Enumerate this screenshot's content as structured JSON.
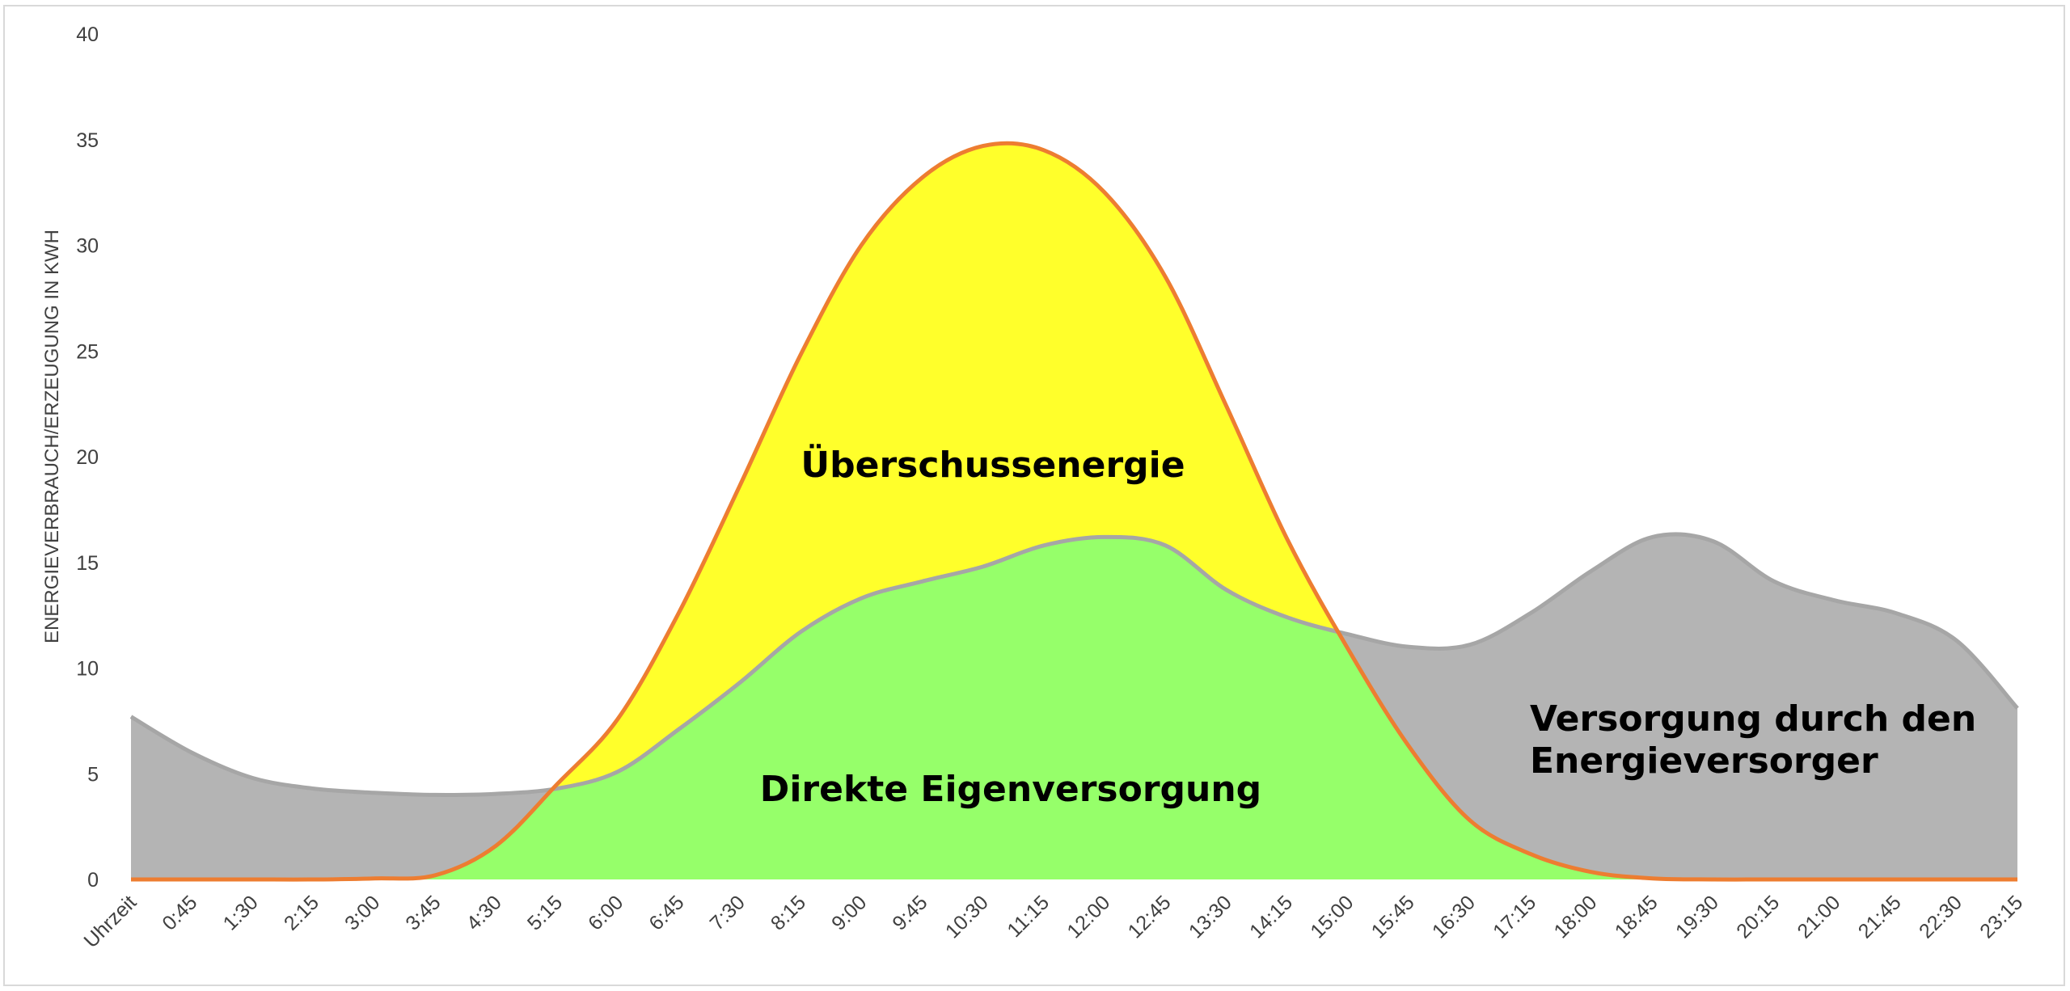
{
  "chart_data": {
    "type": "area",
    "ylabel": "ENERGIEVERBRAUCH/ERZEUGUNG IN KWH",
    "xlabel": "",
    "ylim": [
      0,
      40
    ],
    "yticks": [
      0,
      5,
      10,
      15,
      20,
      25,
      30,
      35,
      40
    ],
    "grid": false,
    "x_tick_labels": [
      "Uhrzeit",
      "0:45",
      "1:30",
      "2:15",
      "3:00",
      "3:45",
      "4:30",
      "5:15",
      "6:00",
      "6:45",
      "7:30",
      "8:15",
      "9:00",
      "9:45",
      "10:30",
      "11:15",
      "12:00",
      "12:45",
      "13:30",
      "14:15",
      "15:00",
      "15:45",
      "16:30",
      "17:15",
      "18:00",
      "18:45",
      "19:30",
      "20:15",
      "21:00",
      "21:45",
      "22:30",
      "23:15"
    ],
    "series": [
      {
        "role": "consumption",
        "values": [
          7.7,
          6.0,
          4.8,
          4.3,
          4.1,
          4.0,
          4.05,
          4.3,
          5.1,
          7.1,
          9.3,
          11.7,
          13.3,
          14.1,
          14.8,
          15.8,
          16.2,
          15.8,
          13.7,
          12.4,
          11.6,
          11.0,
          11.1,
          12.6,
          14.6,
          16.2,
          16.0,
          14.1,
          13.2,
          12.6,
          11.3,
          8.1
        ],
        "color": "#a6a6a6"
      },
      {
        "role": "generation",
        "values": [
          0,
          0,
          0,
          0,
          0.05,
          0.2,
          1.6,
          4.5,
          7.6,
          12.6,
          18.6,
          24.8,
          30.0,
          33.2,
          34.7,
          34.5,
          32.5,
          28.5,
          22.4,
          16.1,
          10.9,
          6.3,
          2.8,
          1.2,
          0.35,
          0.05,
          0,
          0,
          0,
          0,
          0,
          0
        ],
        "color": "#ed7d31"
      }
    ],
    "area_colors": {
      "direct_self_supply": "#96ff6a",
      "surplus": "#ffff2b",
      "grid_supply": "#b4b4b4"
    },
    "annotations": [
      "Überschussenergie",
      "Direkte Eigenversorgung",
      "Versorgung durch den",
      "Energieversorger"
    ]
  }
}
